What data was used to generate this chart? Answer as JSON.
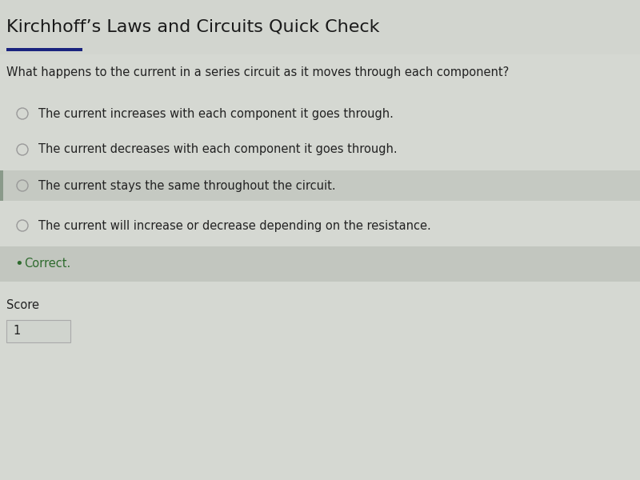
{
  "title": "Kirchhoff’s Laws and Circuits Quick Check",
  "question": "What happens to the current in a series circuit as it moves through each component?",
  "options": [
    "The current increases with each component it goes through.",
    "The current decreases with each component it goes through.",
    "The current stays the same throughout the circuit.",
    "The current will increase or decrease depending on the resistance."
  ],
  "correct_index": 2,
  "correct_label": "Correct.",
  "score_label": "Score",
  "score_value": "1",
  "bg_color": "#c8cbc5",
  "title_bg": "#d2d5cf",
  "content_bg": "#d5d8d2",
  "highlight_bg": "#c5c9c2",
  "correct_bg": "#c2c6bf",
  "title_color": "#1a1a1a",
  "question_color": "#222222",
  "option_color": "#222222",
  "correct_color": "#2e6b2e",
  "score_color": "#222222",
  "accent_bar_color": "#1a237e",
  "left_bar_color": "#8a9a8a",
  "title_fontsize": 16,
  "question_fontsize": 10.5,
  "option_fontsize": 10.5,
  "correct_fontsize": 10.5,
  "score_fontsize": 10.5
}
